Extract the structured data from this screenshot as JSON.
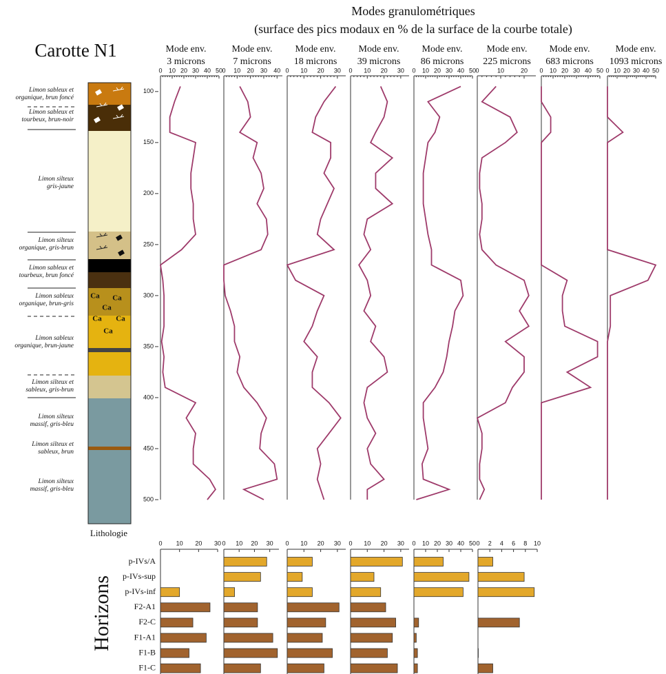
{
  "header": {
    "title": "Modes granulométriques",
    "subtitle": "(surface des pics modaux en % de la surface de la courbe totale)"
  },
  "core_title": "Carotte N1",
  "lithology": {
    "label": "Lithologie",
    "layers": [
      [
        "Limon sableux et",
        "organique, brun foncé"
      ],
      [
        "Limon sableux et",
        "tourbeux, brun-noir"
      ],
      [
        "Limon silteux",
        "gris-jaune"
      ],
      [
        "Limon silteux",
        "organique, gris-brun"
      ],
      [
        "Limon sableux et",
        "tourbeux, brun foncé"
      ],
      [
        "Limon sableux",
        "organique, brun-gris"
      ],
      [
        "Limon sableux",
        "organique, brun-jaune"
      ],
      [
        "Limon silteux et",
        "sableux, gris-brun"
      ],
      [
        "Limon silteux",
        "massif, gris-bleu"
      ],
      [
        "Limon silteux et",
        "sableux, brun"
      ],
      [
        "Limon silteux",
        "massif, gris-bleu"
      ]
    ],
    "symbols": [
      "Ca",
      "Ca",
      "Ca",
      "Ca",
      "Ca",
      "Ca"
    ]
  },
  "chart_data": [
    {
      "type": "line",
      "ylim": [
        90,
        500
      ],
      "yticks": [
        100,
        150,
        200,
        250,
        300,
        350,
        400,
        450,
        500
      ],
      "color": "#9e3a6a",
      "y": [
        95,
        110,
        125,
        140,
        150,
        165,
        180,
        195,
        210,
        225,
        240,
        255,
        270,
        285,
        300,
        315,
        330,
        345,
        360,
        375,
        390,
        405,
        420,
        435,
        450,
        465,
        480,
        490,
        500
      ],
      "series": [
        {
          "label": "Mode env.",
          "name": "3 microns",
          "xlim": [
            0,
            50
          ],
          "xticks": [
            0,
            10,
            20,
            30,
            40,
            50
          ],
          "values": [
            17,
            12,
            8,
            8,
            30,
            28,
            26,
            26,
            28,
            28,
            30,
            18,
            0,
            2,
            3,
            3,
            3,
            1,
            3,
            2,
            4,
            30,
            22,
            30,
            28,
            28,
            42,
            47,
            40
          ]
        },
        {
          "label": "Mode env.",
          "name": "7 microns",
          "xlim": [
            0,
            44
          ],
          "xticks": [
            0,
            10,
            20,
            30,
            40
          ],
          "values": [
            12,
            18,
            20,
            12,
            25,
            22,
            28,
            30,
            25,
            32,
            33,
            28,
            0,
            0,
            1,
            5,
            8,
            8,
            12,
            10,
            15,
            25,
            32,
            28,
            27,
            38,
            40,
            15,
            30
          ]
        },
        {
          "label": "Mode env.",
          "name": "18 microns",
          "xlim": [
            0,
            35
          ],
          "xticks": [
            0,
            10,
            20,
            30
          ],
          "values": [
            29,
            22,
            17,
            15,
            26,
            26,
            22,
            28,
            24,
            20,
            18,
            28,
            0,
            5,
            22,
            18,
            15,
            10,
            18,
            15,
            15,
            25,
            32,
            25,
            18,
            20,
            18,
            20,
            22
          ]
        },
        {
          "label": "Mode env.",
          "name": "39 microns",
          "xlim": [
            0,
            35
          ],
          "xticks": [
            0,
            10,
            20,
            30
          ],
          "values": [
            18,
            22,
            20,
            15,
            12,
            25,
            15,
            15,
            25,
            10,
            8,
            12,
            5,
            10,
            12,
            8,
            15,
            12,
            20,
            22,
            10,
            8,
            10,
            15,
            10,
            12,
            20,
            10,
            10
          ]
        },
        {
          "label": "Mode env.",
          "name": "86 microns",
          "xlim": [
            0,
            50
          ],
          "xticks": [
            0,
            10,
            20,
            30,
            40,
            50
          ],
          "values": [
            40,
            12,
            22,
            18,
            12,
            10,
            8,
            8,
            8,
            10,
            12,
            15,
            15,
            40,
            42,
            35,
            33,
            30,
            28,
            25,
            18,
            8,
            8,
            10,
            12,
            7,
            8,
            30,
            2
          ]
        },
        {
          "label": "Mode env.",
          "name": "225 microns",
          "xlim": [
            0,
            25
          ],
          "xticks": [
            0,
            10,
            20
          ],
          "values": [
            8,
            2,
            14,
            17,
            12,
            2,
            1,
            1,
            2,
            2,
            1,
            2,
            8,
            20,
            22,
            18,
            22,
            12,
            20,
            20,
            15,
            12,
            0,
            2,
            2,
            1,
            1,
            3,
            1
          ]
        },
        {
          "label": "Mode env.",
          "name": "683 microns",
          "xlim": [
            0,
            50
          ],
          "xticks": [
            0,
            10,
            20,
            30,
            40,
            50
          ],
          "values": [
            0,
            0,
            8,
            8,
            0,
            0,
            0,
            0,
            0,
            0,
            0,
            0,
            0,
            22,
            18,
            18,
            20,
            48,
            48,
            22,
            42,
            0,
            0,
            0,
            0,
            0,
            0,
            0,
            0
          ]
        },
        {
          "label": "Mode env.",
          "name": "1093 microns",
          "xlim": [
            0,
            50
          ],
          "xticks": [
            0,
            10,
            20,
            30,
            40,
            50
          ],
          "values": [
            0,
            0,
            0,
            16,
            0,
            0,
            0,
            0,
            0,
            0,
            0,
            0,
            50,
            42,
            3,
            3,
            3,
            0,
            0,
            0,
            0,
            0,
            0,
            0,
            0,
            0,
            0,
            0,
            0
          ]
        }
      ]
    },
    {
      "type": "bar",
      "ylabel": "Horizons",
      "categories": [
        "p-IVs/A",
        "p-IVs-sup",
        "p-IVs-inf",
        "F2-A1",
        "F2-C",
        "F1-A1",
        "F1-B",
        "F1-C"
      ],
      "colors": [
        "#e3a82b",
        "#e3a82b",
        "#e3a82b",
        "#a1632e",
        "#a1632e",
        "#a1632e",
        "#a1632e",
        "#a1632e"
      ],
      "series": [
        {
          "xlim": [
            0,
            30
          ],
          "xticks": [
            0,
            10,
            20,
            30
          ],
          "values": [
            null,
            null,
            10,
            26,
            17,
            24,
            15,
            21
          ]
        },
        {
          "xlim": [
            0,
            36
          ],
          "xticks": [
            0,
            10,
            20,
            30
          ],
          "values": [
            28,
            24,
            7,
            22,
            22,
            32,
            35,
            24
          ]
        },
        {
          "xlim": [
            0,
            35
          ],
          "xticks": [
            0,
            10,
            20,
            30
          ],
          "values": [
            15,
            9,
            15,
            31,
            23,
            21,
            27,
            22
          ]
        },
        {
          "xlim": [
            0,
            35
          ],
          "xticks": [
            0,
            10,
            20,
            30
          ],
          "values": [
            31,
            14,
            18,
            21,
            27,
            25,
            22,
            28
          ]
        },
        {
          "xlim": [
            0,
            50
          ],
          "xticks": [
            0,
            10,
            20,
            30,
            40,
            50
          ],
          "values": [
            25,
            47,
            42,
            null,
            4,
            2,
            3,
            3
          ]
        },
        {
          "xlim": [
            0,
            10
          ],
          "xticks": [
            0,
            2,
            4,
            6,
            8,
            10
          ],
          "values": [
            2.5,
            7.8,
            9.5,
            null,
            7,
            null,
            0,
            2.5
          ]
        }
      ]
    }
  ]
}
